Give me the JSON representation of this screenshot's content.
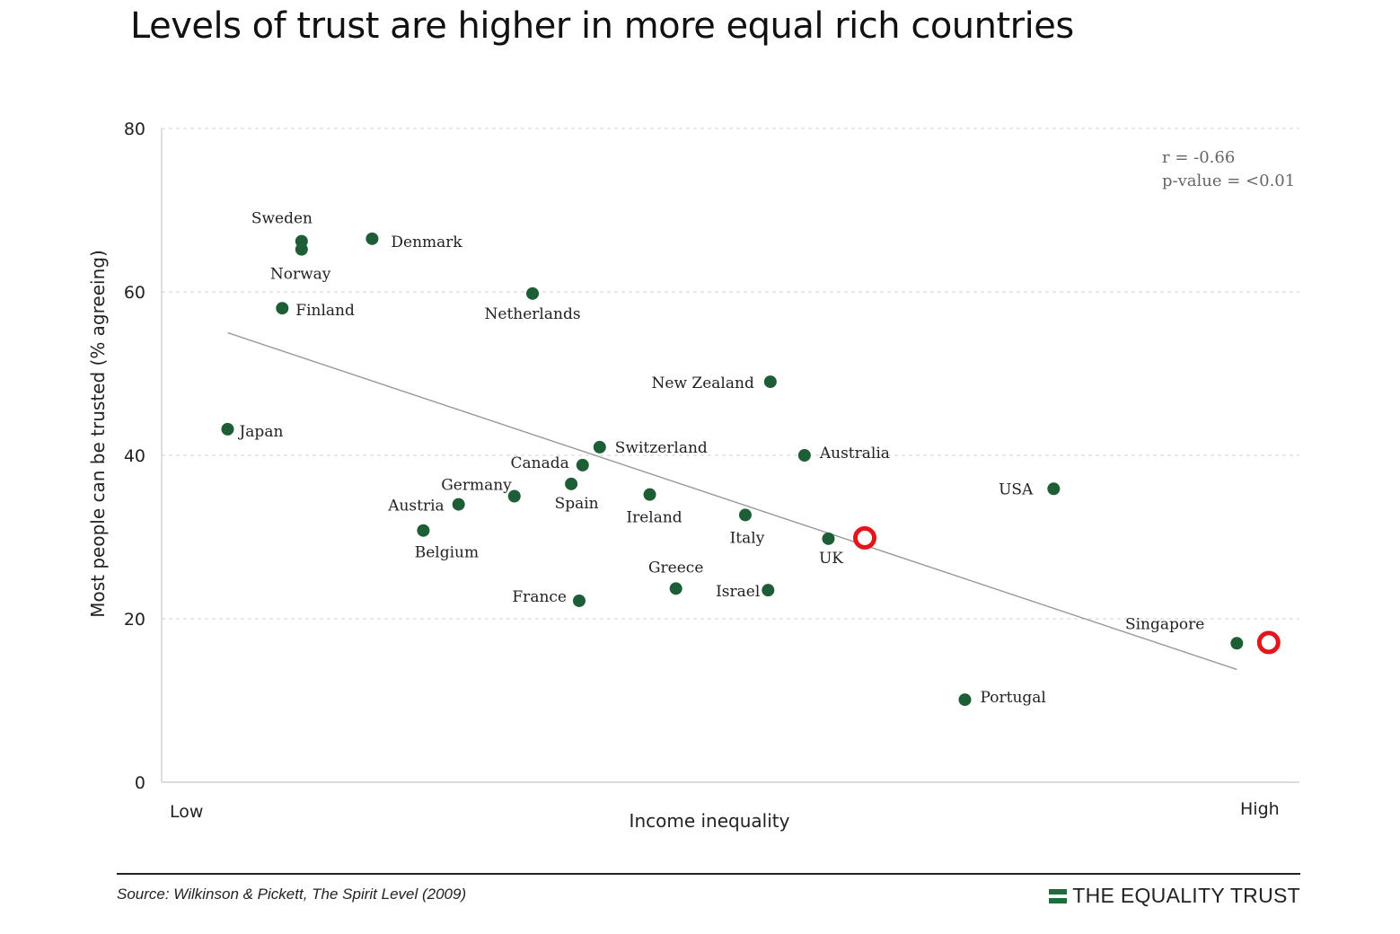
{
  "title": "Levels of trust are higher in more equal rich countries",
  "source": "Source: Wilkinson & Pickett, The Spirit Level (2009)",
  "brand": "THE EQUALITY TRUST",
  "colors": {
    "point": "#1e5e36",
    "marker": "#e3161b",
    "trend": "#999999",
    "grid": "#d9d9d9",
    "brand": "#1e6b3c"
  },
  "chart_data": {
    "type": "scatter",
    "title": "Levels of trust are higher in more equal rich countries",
    "xlabel": "Income inequality",
    "ylabel": "Most people can be trusted (% agreeing)",
    "x_tick_labels": [
      "Low",
      "High"
    ],
    "xlim": [
      0,
      100
    ],
    "ylim": [
      0,
      80
    ],
    "y_ticks": [
      0,
      20,
      40,
      60,
      80
    ],
    "grid": "horizontal dashed",
    "stats": {
      "r": "r = -0.66",
      "p": "p-value = <0.01"
    },
    "points": [
      {
        "label": "Sweden",
        "x": 12.3,
        "y": 66.2
      },
      {
        "label": "Norway",
        "x": 12.3,
        "y": 65.2
      },
      {
        "label": "Denmark",
        "x": 18.5,
        "y": 66.5
      },
      {
        "label": "Finland",
        "x": 10.6,
        "y": 58.0
      },
      {
        "label": "Netherlands",
        "x": 32.6,
        "y": 59.8
      },
      {
        "label": "Japan",
        "x": 5.8,
        "y": 43.2
      },
      {
        "label": "New Zealand",
        "x": 53.5,
        "y": 49.0
      },
      {
        "label": "Switzerland",
        "x": 38.5,
        "y": 41.0
      },
      {
        "label": "Canada",
        "x": 37.0,
        "y": 38.8
      },
      {
        "label": "Australia",
        "x": 56.5,
        "y": 40.0
      },
      {
        "label": "Germany",
        "x": 31.0,
        "y": 35.0
      },
      {
        "label": "Spain",
        "x": 36.0,
        "y": 36.5
      },
      {
        "label": "Austria",
        "x": 26.1,
        "y": 34.0
      },
      {
        "label": "Ireland",
        "x": 42.9,
        "y": 35.2
      },
      {
        "label": "Belgium",
        "x": 23.0,
        "y": 30.8
      },
      {
        "label": "Italy",
        "x": 51.3,
        "y": 32.7
      },
      {
        "label": "UK",
        "x": 58.6,
        "y": 29.8
      },
      {
        "label": "USA",
        "x": 78.4,
        "y": 35.9
      },
      {
        "label": "Greece",
        "x": 45.2,
        "y": 23.7
      },
      {
        "label": "Israel",
        "x": 53.3,
        "y": 23.5
      },
      {
        "label": "France",
        "x": 36.7,
        "y": 22.2
      },
      {
        "label": "Singapore",
        "x": 94.5,
        "y": 17.0
      },
      {
        "label": "Portugal",
        "x": 70.6,
        "y": 10.1
      }
    ],
    "trend_line": {
      "from": {
        "x": 5.8,
        "y": 55.0
      },
      "to": {
        "x": 94.5,
        "y": 13.8
      }
    },
    "highlights": [
      {
        "x": 61.8,
        "y": 29.9
      },
      {
        "x": 97.3,
        "y": 17.1
      }
    ]
  }
}
